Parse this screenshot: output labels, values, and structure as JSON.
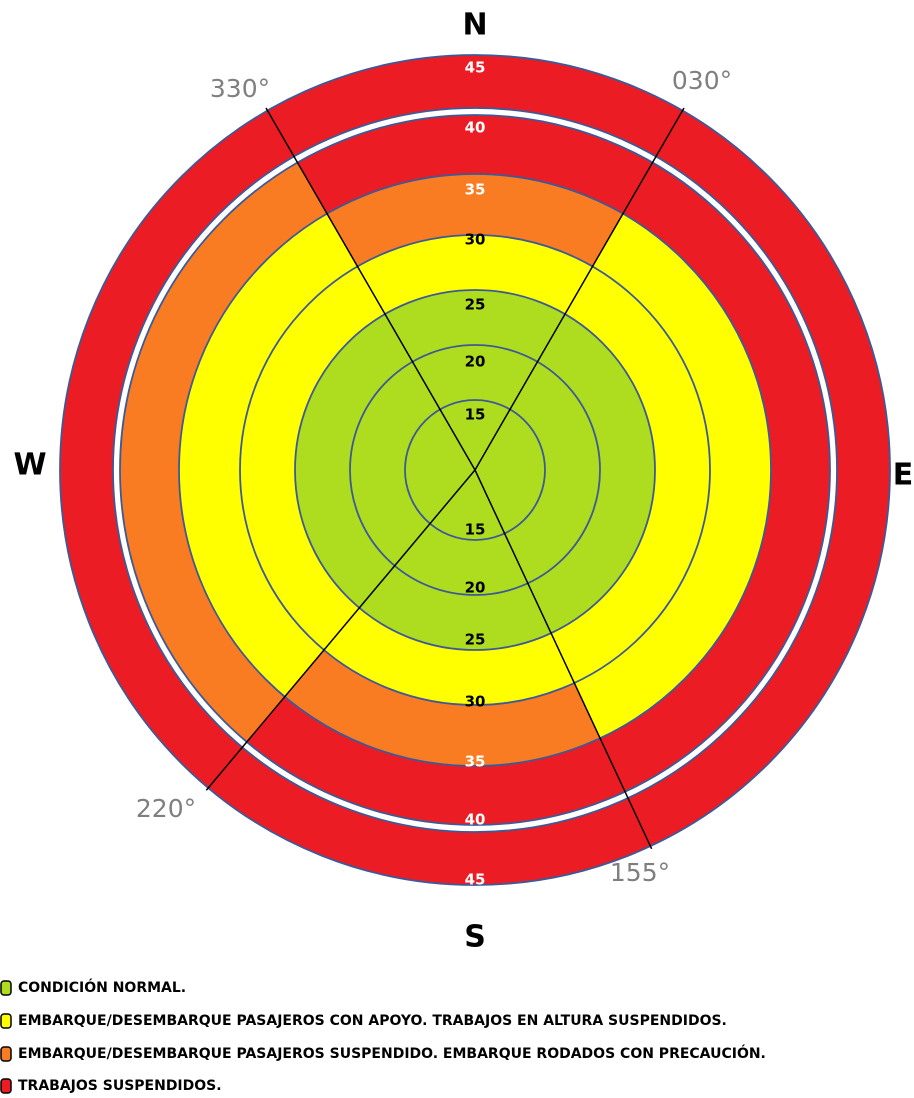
{
  "compass": {
    "north": "N",
    "east": "E",
    "south": "S",
    "west": "W"
  },
  "bearings": [
    "330°",
    "030°",
    "220°",
    "155°"
  ],
  "ring_labels_top": [
    "45",
    "40",
    "35",
    "30",
    "25",
    "20",
    "15"
  ],
  "ring_labels_bottom": [
    "15",
    "20",
    "25",
    "30",
    "35",
    "40",
    "45"
  ],
  "legend": [
    {
      "label": "CONDICIÓN NORMAL.",
      "color": "#aedc1e"
    },
    {
      "label": "EMBARQUE/DESEMBARQUE PASAJEROS CON APOYO. TRABAJOS EN ALTURA SUSPENDIDOS.",
      "color": "#ffff00"
    },
    {
      "label": "EMBARQUE/DESEMBARQUE PASAJEROS SUSPENDIDO. EMBARQUE RODADOS CON PRECAUCIÓN.",
      "color": "#f97c22"
    },
    {
      "label": "TRABAJOS SUSPENDIDOS.",
      "color": "#ec1c24"
    }
  ]
}
